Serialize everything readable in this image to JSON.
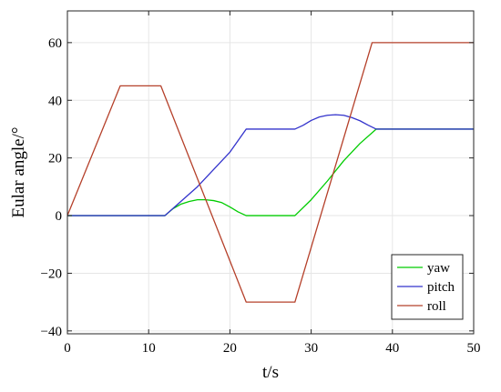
{
  "chart_data": {
    "type": "line",
    "title": "",
    "xlabel": "t/s",
    "ylabel": "Eular angle/°",
    "xlim": [
      0,
      50
    ],
    "ylim": [
      -41,
      71
    ],
    "xticks": [
      0,
      10,
      20,
      30,
      40,
      50
    ],
    "xtick_labels": [
      "0",
      "10",
      "20",
      "30",
      "40",
      "50"
    ],
    "yticks": [
      -40,
      -20,
      0,
      20,
      40,
      60
    ],
    "ytick_labels": [
      "−40",
      "−20",
      "0",
      "20",
      "40",
      "60"
    ],
    "grid": true,
    "legend_position": "bottom-right",
    "series": [
      {
        "name": "yaw",
        "color": "#00cc00",
        "points": [
          [
            0,
            0
          ],
          [
            12,
            0
          ],
          [
            13,
            2.4
          ],
          [
            14,
            4
          ],
          [
            15,
            4.9
          ],
          [
            16,
            5.5
          ],
          [
            17,
            5.5
          ],
          [
            18,
            5.2
          ],
          [
            19,
            4.5
          ],
          [
            20,
            3
          ],
          [
            21,
            1.3
          ],
          [
            22,
            0
          ],
          [
            28,
            0
          ],
          [
            30,
            5.5
          ],
          [
            32,
            12
          ],
          [
            34,
            19
          ],
          [
            36,
            25
          ],
          [
            38,
            30
          ],
          [
            50,
            30
          ]
        ]
      },
      {
        "name": "pitch",
        "color": "#3333cc",
        "points": [
          [
            0,
            0
          ],
          [
            12,
            0
          ],
          [
            13,
            2.5
          ],
          [
            16,
            10
          ],
          [
            20,
            22
          ],
          [
            22,
            30
          ],
          [
            28,
            30
          ],
          [
            29,
            31.3
          ],
          [
            30,
            33
          ],
          [
            31,
            34.2
          ],
          [
            32,
            34.8
          ],
          [
            33,
            35
          ],
          [
            34,
            34.8
          ],
          [
            35,
            34
          ],
          [
            36,
            32.9
          ],
          [
            37,
            31.4
          ],
          [
            38,
            30
          ],
          [
            50,
            30
          ]
        ]
      },
      {
        "name": "roll",
        "color": "#b5402a",
        "points": [
          [
            0,
            0
          ],
          [
            6.5,
            45
          ],
          [
            11.5,
            45
          ],
          [
            22,
            -30
          ],
          [
            28,
            -30
          ],
          [
            37.5,
            60
          ],
          [
            50,
            60
          ]
        ]
      }
    ]
  }
}
